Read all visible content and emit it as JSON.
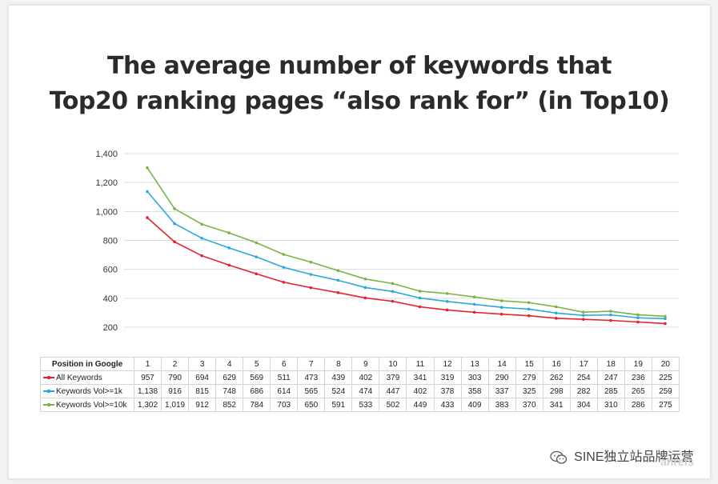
{
  "chart_data": {
    "type": "line",
    "title": [
      "The average number of keywords that",
      "Top20 ranking pages “also rank for” (in Top10)"
    ],
    "xlabel": "Position in Google",
    "ylabel": "",
    "ylim": [
      200,
      1400
    ],
    "yticks": [
      200,
      400,
      600,
      800,
      1000,
      1200,
      1400
    ],
    "ytick_labels": [
      "200",
      "400",
      "600",
      "800",
      "1,000",
      "1,200",
      "1,400"
    ],
    "grid": true,
    "categories": [
      "1",
      "2",
      "3",
      "4",
      "5",
      "6",
      "7",
      "8",
      "9",
      "10",
      "11",
      "12",
      "13",
      "14",
      "15",
      "16",
      "17",
      "18",
      "19",
      "20"
    ],
    "series": [
      {
        "name": "All Keywords",
        "color": "#e8202b",
        "values": [
          957,
          790,
          694,
          629,
          569,
          511,
          473,
          439,
          402,
          379,
          341,
          319,
          303,
          290,
          279,
          262,
          254,
          247,
          236,
          225
        ],
        "labels": [
          "957",
          "790",
          "694",
          "629",
          "569",
          "511",
          "473",
          "439",
          "402",
          "379",
          "341",
          "319",
          "303",
          "290",
          "279",
          "262",
          "254",
          "247",
          "236",
          "225"
        ]
      },
      {
        "name": "Keywords Vol>=1k",
        "color": "#29a8e0",
        "values": [
          1138,
          916,
          815,
          748,
          686,
          614,
          565,
          524,
          474,
          447,
          402,
          378,
          358,
          337,
          325,
          298,
          282,
          285,
          265,
          259
        ],
        "labels": [
          "1,138",
          "916",
          "815",
          "748",
          "686",
          "614",
          "565",
          "524",
          "474",
          "447",
          "402",
          "378",
          "358",
          "337",
          "325",
          "298",
          "282",
          "285",
          "265",
          "259"
        ]
      },
      {
        "name": "Keywords Vol>=10k",
        "color": "#7cb342",
        "values": [
          1302,
          1019,
          912,
          852,
          784,
          703,
          650,
          591,
          533,
          502,
          449,
          433,
          409,
          383,
          370,
          341,
          304,
          310,
          286,
          275
        ],
        "labels": [
          "1,302",
          "1,019",
          "912",
          "852",
          "784",
          "703",
          "650",
          "591",
          "533",
          "502",
          "449",
          "433",
          "409",
          "383",
          "370",
          "341",
          "304",
          "310",
          "286",
          "275"
        ]
      }
    ]
  },
  "watermark": {
    "text": "SINE独立站品牌运营",
    "faded": "ahrefs"
  }
}
